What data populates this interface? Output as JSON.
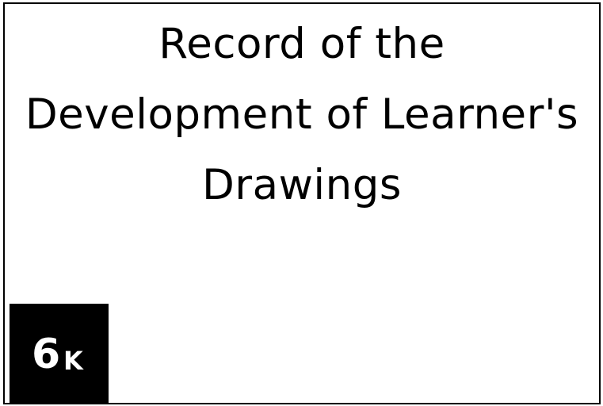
{
  "title": {
    "line1": "Record of the",
    "line2": "Development of Learner's",
    "line3": "Drawings"
  },
  "badge": {
    "number": "6",
    "suffix": "K",
    "background": "#000000",
    "text_color": "#ffffff"
  }
}
